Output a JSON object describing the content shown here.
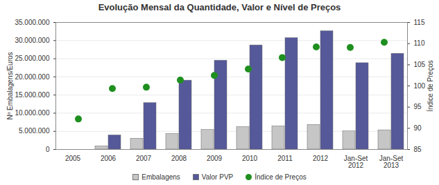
{
  "chart_data": {
    "type": "bar",
    "title": "Evolução Mensal da Quantidade, Valor e Nível de Preços",
    "y_label": "Nº Embalagens/Euros",
    "y2_label": "Índice de Preços",
    "categories": [
      "2005",
      "2006",
      "2007",
      "2008",
      "2009",
      "2010",
      "2011",
      "2012",
      "Jan-Set 2012",
      "Jan-Set 2013"
    ],
    "series": [
      {
        "name": "Embalagens",
        "type": "bar",
        "color": "#c6c6c6",
        "values": [
          0,
          900000,
          3000000,
          4300000,
          5400000,
          6200000,
          6400000,
          6800000,
          5000000,
          5300000
        ]
      },
      {
        "name": "Valor PVP",
        "type": "bar",
        "color": "#55599a",
        "values": [
          0,
          3900000,
          12800000,
          19000000,
          24500000,
          28700000,
          30700000,
          32600000,
          23800000,
          26400000
        ]
      },
      {
        "name": "Índice de Preços",
        "type": "scatter",
        "axis": "y2",
        "color": "#1f8f1f",
        "values": [
          92.2,
          99.4,
          99.7,
          101.4,
          102.5,
          104.0,
          106.7,
          109.2,
          109.1,
          110.3
        ]
      }
    ],
    "ylim": [
      0,
      35000000
    ],
    "yticks": [
      0,
      {
        "value": 5000000,
        "label": "5.000.000"
      },
      {
        "value": 10000000,
        "label": "10.000.000"
      },
      {
        "value": 15000000,
        "label": "15.000.000"
      },
      {
        "value": 20000000,
        "label": "20.000.000"
      },
      {
        "value": 25000000,
        "label": "25.000.000"
      },
      {
        "value": 30000000,
        "label": "30.000.000"
      },
      {
        "value": 35000000,
        "label": "35.000.000"
      }
    ],
    "y2lim": [
      85,
      115
    ],
    "y2ticks": [
      85,
      90,
      95,
      100,
      105,
      110,
      115
    ],
    "grid": true,
    "legend": "bottom"
  }
}
